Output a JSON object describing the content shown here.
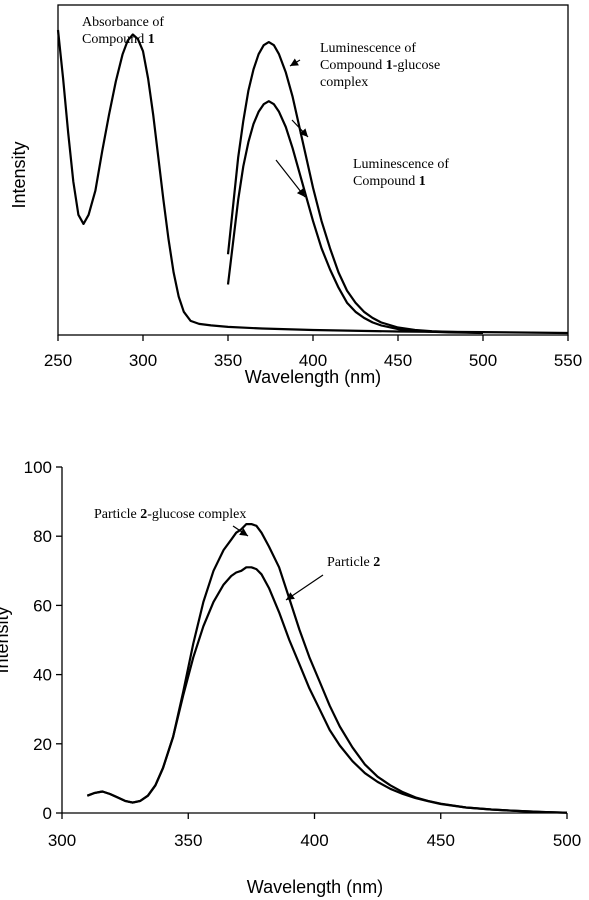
{
  "chart_data": [
    {
      "type": "line",
      "xlabel": "Wavelength (nm)",
      "ylabel": "Intensity",
      "xlim": [
        250,
        550
      ],
      "ylim": [
        0,
        1
      ],
      "x_ticks": [
        "250",
        "300",
        "350",
        "400",
        "450",
        "500",
        "550"
      ],
      "y_ticks_shown": false,
      "grid": false,
      "legend": "none",
      "series": [
        {
          "name": "Absorbance of Compound 1",
          "points": [
            [
              250,
              1.0
            ],
            [
              253,
              0.84
            ],
            [
              256,
              0.66
            ],
            [
              259,
              0.5
            ],
            [
              262,
              0.39
            ],
            [
              265,
              0.36
            ],
            [
              268,
              0.39
            ],
            [
              272,
              0.47
            ],
            [
              276,
              0.6
            ],
            [
              280,
              0.72
            ],
            [
              284,
              0.83
            ],
            [
              288,
              0.92
            ],
            [
              291,
              0.965
            ],
            [
              294,
              0.985
            ],
            [
              297,
              0.97
            ],
            [
              300,
              0.93
            ],
            [
              303,
              0.84
            ],
            [
              306,
              0.72
            ],
            [
              309,
              0.58
            ],
            [
              312,
              0.44
            ],
            [
              315,
              0.31
            ],
            [
              318,
              0.2
            ],
            [
              321,
              0.12
            ],
            [
              324,
              0.07
            ],
            [
              328,
              0.04
            ],
            [
              333,
              0.03
            ],
            [
              340,
              0.025
            ],
            [
              350,
              0.02
            ],
            [
              370,
              0.015
            ],
            [
              400,
              0.01
            ],
            [
              450,
              0.005
            ],
            [
              500,
              0.003
            ],
            [
              550,
              0.0
            ]
          ]
        },
        {
          "name": "Luminescence of Compound 1-glucose complex",
          "points": [
            [
              350,
              0.26
            ],
            [
              353,
              0.42
            ],
            [
              356,
              0.58
            ],
            [
              359,
              0.7
            ],
            [
              362,
              0.8
            ],
            [
              365,
              0.87
            ],
            [
              368,
              0.92
            ],
            [
              371,
              0.95
            ],
            [
              374,
              0.96
            ],
            [
              377,
              0.95
            ],
            [
              380,
              0.92
            ],
            [
              384,
              0.86
            ],
            [
              388,
              0.78
            ],
            [
              392,
              0.68
            ],
            [
              396,
              0.58
            ],
            [
              400,
              0.48
            ],
            [
              405,
              0.37
            ],
            [
              410,
              0.28
            ],
            [
              415,
              0.2
            ],
            [
              420,
              0.14
            ],
            [
              425,
              0.1
            ],
            [
              430,
              0.07
            ],
            [
              435,
              0.05
            ],
            [
              440,
              0.035
            ],
            [
              450,
              0.018
            ],
            [
              460,
              0.01
            ],
            [
              470,
              0.006
            ],
            [
              480,
              0.004
            ],
            [
              490,
              0.002
            ],
            [
              500,
              0.001
            ]
          ]
        },
        {
          "name": "Luminescence of Compound 1",
          "points": [
            [
              350,
              0.16
            ],
            [
              353,
              0.3
            ],
            [
              356,
              0.44
            ],
            [
              359,
              0.55
            ],
            [
              362,
              0.63
            ],
            [
              365,
              0.69
            ],
            [
              368,
              0.73
            ],
            [
              371,
              0.755
            ],
            [
              374,
              0.765
            ],
            [
              377,
              0.755
            ],
            [
              380,
              0.73
            ],
            [
              384,
              0.68
            ],
            [
              388,
              0.61
            ],
            [
              392,
              0.53
            ],
            [
              396,
              0.45
            ],
            [
              400,
              0.37
            ],
            [
              405,
              0.28
            ],
            [
              410,
              0.21
            ],
            [
              415,
              0.15
            ],
            [
              420,
              0.1
            ],
            [
              425,
              0.07
            ],
            [
              430,
              0.05
            ],
            [
              435,
              0.035
            ],
            [
              440,
              0.025
            ],
            [
              450,
              0.013
            ],
            [
              460,
              0.007
            ],
            [
              470,
              0.004
            ],
            [
              480,
              0.002
            ],
            [
              490,
              0.001
            ],
            [
              500,
              0.0
            ]
          ]
        }
      ],
      "annotations": [
        {
          "lines": [
            [
              {
                "t": "Absorbance of",
                "b": false
              }
            ],
            [
              {
                "t": "Compound ",
                "b": false
              },
              {
                "t": "1",
                "b": true
              }
            ]
          ]
        },
        {
          "lines": [
            [
              {
                "t": "Luminescence of",
                "b": false
              }
            ],
            [
              {
                "t": "Compound ",
                "b": false
              },
              {
                "t": "1",
                "b": true
              },
              {
                "t": "-glucose",
                "b": false
              }
            ],
            [
              {
                "t": "complex",
                "b": false
              }
            ]
          ]
        },
        {
          "lines": [
            [
              {
                "t": "Luminescence of",
                "b": false
              }
            ],
            [
              {
                "t": "Compound ",
                "b": false
              },
              {
                "t": "1",
                "b": true
              }
            ]
          ]
        }
      ]
    },
    {
      "type": "line",
      "xlabel": "Wavelength (nm)",
      "ylabel": "Intensity",
      "xlim": [
        300,
        500
      ],
      "ylim": [
        0,
        100
      ],
      "x_ticks": [
        "300",
        "350",
        "400",
        "450",
        "500"
      ],
      "y_ticks": [
        "0",
        "20",
        "40",
        "60",
        "80",
        "100"
      ],
      "grid": false,
      "legend": "none",
      "series": [
        {
          "name": "Particle 2-glucose complex",
          "points": [
            [
              310,
              5
            ],
            [
              313,
              5.8
            ],
            [
              316,
              6.2
            ],
            [
              319,
              5.5
            ],
            [
              322,
              4.5
            ],
            [
              325,
              3.5
            ],
            [
              328,
              3
            ],
            [
              331,
              3.5
            ],
            [
              334,
              5
            ],
            [
              337,
              8
            ],
            [
              340,
              13
            ],
            [
              344,
              22
            ],
            [
              348,
              35
            ],
            [
              352,
              49
            ],
            [
              356,
              61
            ],
            [
              360,
              70
            ],
            [
              364,
              76
            ],
            [
              367,
              79
            ],
            [
              369,
              81
            ],
            [
              371,
              82
            ],
            [
              373,
              83.5
            ],
            [
              375,
              83.5
            ],
            [
              377,
              83
            ],
            [
              379,
              81
            ],
            [
              382,
              77
            ],
            [
              386,
              71
            ],
            [
              390,
              62
            ],
            [
              394,
              53
            ],
            [
              398,
              45
            ],
            [
              402,
              38
            ],
            [
              406,
              31
            ],
            [
              410,
              25
            ],
            [
              415,
              19
            ],
            [
              420,
              14
            ],
            [
              425,
              10.5
            ],
            [
              430,
              8
            ],
            [
              435,
              6
            ],
            [
              440,
              4.5
            ],
            [
              445,
              3.5
            ],
            [
              450,
              2.7
            ],
            [
              460,
              1.6
            ],
            [
              470,
              1
            ],
            [
              480,
              0.6
            ],
            [
              490,
              0.3
            ],
            [
              500,
              0.1
            ]
          ]
        },
        {
          "name": "Particle 2",
          "points": [
            [
              310,
              5
            ],
            [
              313,
              5.8
            ],
            [
              316,
              6.2
            ],
            [
              319,
              5.5
            ],
            [
              322,
              4.5
            ],
            [
              325,
              3.5
            ],
            [
              328,
              3
            ],
            [
              331,
              3.5
            ],
            [
              334,
              5
            ],
            [
              337,
              8
            ],
            [
              340,
              13
            ],
            [
              344,
              22
            ],
            [
              348,
              34
            ],
            [
              352,
              45
            ],
            [
              356,
              54
            ],
            [
              360,
              61
            ],
            [
              364,
              66
            ],
            [
              367,
              68.5
            ],
            [
              369,
              69.5
            ],
            [
              371,
              70
            ],
            [
              373,
              71
            ],
            [
              375,
              71
            ],
            [
              377,
              70.5
            ],
            [
              379,
              69
            ],
            [
              382,
              65
            ],
            [
              386,
              58
            ],
            [
              390,
              50
            ],
            [
              394,
              43
            ],
            [
              398,
              36
            ],
            [
              402,
              30
            ],
            [
              406,
              24
            ],
            [
              410,
              19.5
            ],
            [
              415,
              15
            ],
            [
              420,
              11.5
            ],
            [
              425,
              9
            ],
            [
              430,
              7
            ],
            [
              435,
              5.5
            ],
            [
              440,
              4.3
            ],
            [
              445,
              3.4
            ],
            [
              450,
              2.6
            ],
            [
              460,
              1.6
            ],
            [
              470,
              1
            ],
            [
              480,
              0.6
            ],
            [
              490,
              0.3
            ],
            [
              500,
              0.1
            ]
          ]
        }
      ],
      "annotations": [
        {
          "lines": [
            [
              {
                "t": "Particle ",
                "b": false
              },
              {
                "t": "2",
                "b": true
              },
              {
                "t": "-glucose complex",
                "b": false
              }
            ]
          ]
        },
        {
          "lines": [
            [
              {
                "t": "Particle ",
                "b": false
              },
              {
                "t": "2",
                "b": true
              }
            ]
          ]
        }
      ]
    }
  ]
}
